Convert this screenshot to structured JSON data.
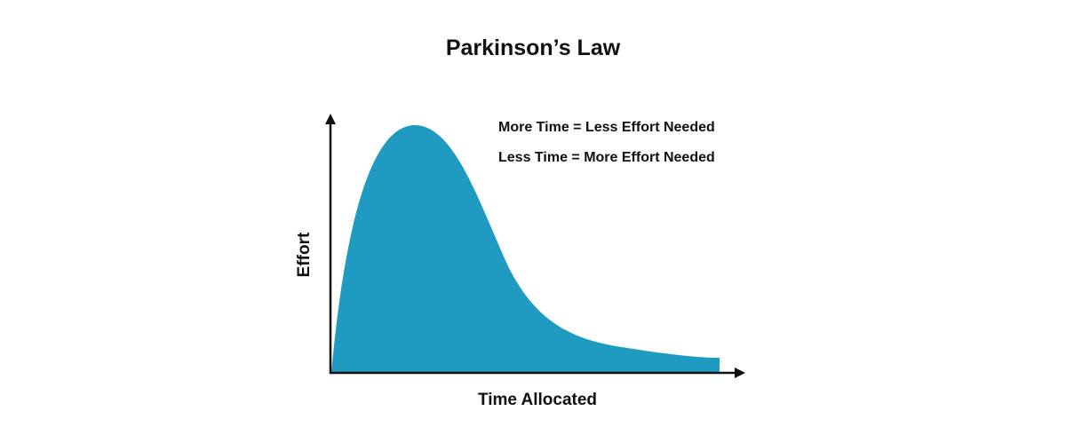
{
  "title": "Parkinson’s Law",
  "annotations": [
    "More Time = Less Effort Needed",
    "Less Time = More Effort Needed"
  ],
  "x_axis_label": "Time Allocated",
  "y_axis_label": "Effort",
  "colors": {
    "curve_fill": "#1f9bc1",
    "axes": "#111111"
  }
}
